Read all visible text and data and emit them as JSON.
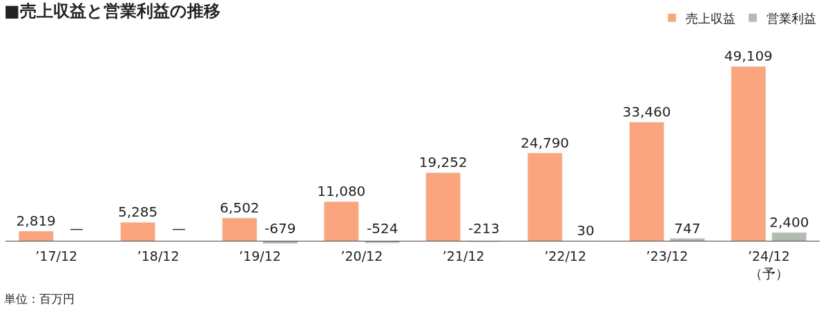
{
  "chart_data": {
    "type": "bar",
    "title": "■売上収益と営業利益の推移",
    "categories": [
      "’17/12",
      "’18/12",
      "’19/12",
      "’20/12",
      "’21/12",
      "’22/12",
      "’23/12",
      "’24/12\n（予）"
    ],
    "series": [
      {
        "name": "売上収益",
        "color": "#fba57e",
        "values": [
          2819,
          5285,
          6502,
          11080,
          19252,
          24790,
          33460,
          49109
        ],
        "value_labels": [
          "2,819",
          "5,285",
          "6,502",
          "11,080",
          "19,252",
          "24,790",
          "33,460",
          "49,109"
        ]
      },
      {
        "name": "営業利益",
        "color": "#b0bcae",
        "values": [
          null,
          null,
          -679,
          -524,
          -213,
          30,
          747,
          2400
        ],
        "value_labels": [
          "—",
          "—",
          "-679",
          "-524",
          "-213",
          "30",
          "747",
          "2,400"
        ]
      }
    ],
    "annotations": [
      "単位：百万円"
    ],
    "legend": "top right"
  }
}
